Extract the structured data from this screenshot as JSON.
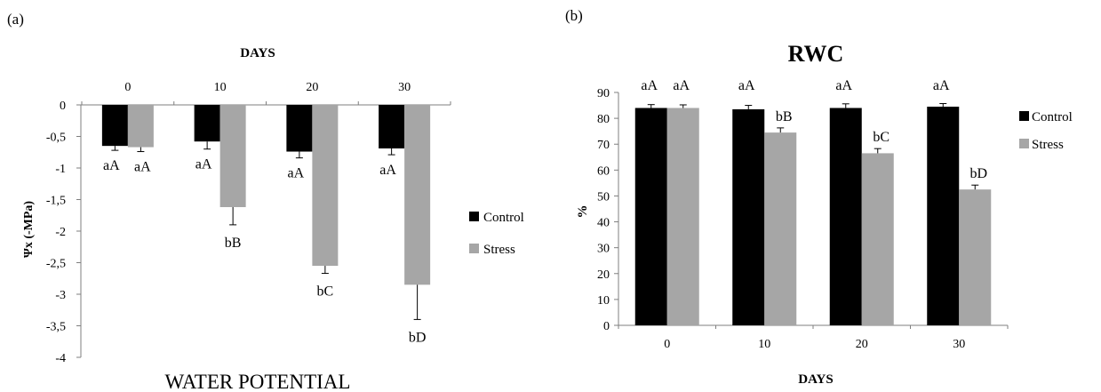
{
  "panels": {
    "a": "(a)",
    "b": "(b)"
  },
  "colors": {
    "control": "#000000",
    "stress": "#a6a6a6",
    "axis": "#7f7f7f"
  },
  "chart_data": [
    {
      "type": "bar",
      "panel": "(a)",
      "title": "WATER POTENTIAL",
      "xlabel": "DAYS",
      "ylabel": "Ψx (-MPa)",
      "ylim": [
        -4,
        0
      ],
      "yticks": [
        "0",
        "-0,5",
        "-1",
        "-1,5",
        "-2",
        "-2,5",
        "-3",
        "-3,5",
        "-4"
      ],
      "ytick_values": [
        0,
        -0.5,
        -1,
        -1.5,
        -2,
        -2.5,
        -3,
        -3.5,
        -4
      ],
      "categories": [
        "0",
        "10",
        "20",
        "30"
      ],
      "legend_position": "right",
      "grid": false,
      "series": [
        {
          "name": "Control",
          "values": [
            -0.65,
            -0.58,
            -0.74,
            -0.69
          ],
          "errors": [
            0.07,
            0.12,
            0.1,
            0.1
          ],
          "labels": [
            "aA",
            "aA",
            "aA",
            "aA"
          ]
        },
        {
          "name": "Stress",
          "values": [
            -0.67,
            -1.62,
            -2.55,
            -2.85
          ],
          "errors": [
            0.07,
            0.28,
            0.12,
            0.55
          ],
          "labels": [
            "aA",
            "bB",
            "bC",
            "bD"
          ]
        }
      ]
    },
    {
      "type": "bar",
      "panel": "(b)",
      "title": "RWC",
      "xlabel": "DAYS",
      "ylabel": "%",
      "ylim": [
        0,
        90
      ],
      "yticks": [
        "0",
        "10",
        "20",
        "30",
        "40",
        "50",
        "60",
        "70",
        "80",
        "90"
      ],
      "ytick_values": [
        0,
        10,
        20,
        30,
        40,
        50,
        60,
        70,
        80,
        90
      ],
      "categories": [
        "0",
        "10",
        "20",
        "30"
      ],
      "legend_position": "right",
      "grid": false,
      "series": [
        {
          "name": "Control",
          "values": [
            84,
            83.5,
            84,
            84.5
          ],
          "errors": [
            1.3,
            1.5,
            1.6,
            1.2
          ],
          "labels": [
            "aA",
            "aA",
            "aA",
            "aA"
          ]
        },
        {
          "name": "Stress",
          "values": [
            84,
            74.5,
            66.5,
            52.5
          ],
          "errors": [
            1.2,
            1.8,
            1.8,
            1.7
          ],
          "labels": [
            "aA",
            "bB",
            "bC",
            "bD"
          ]
        }
      ]
    }
  ]
}
